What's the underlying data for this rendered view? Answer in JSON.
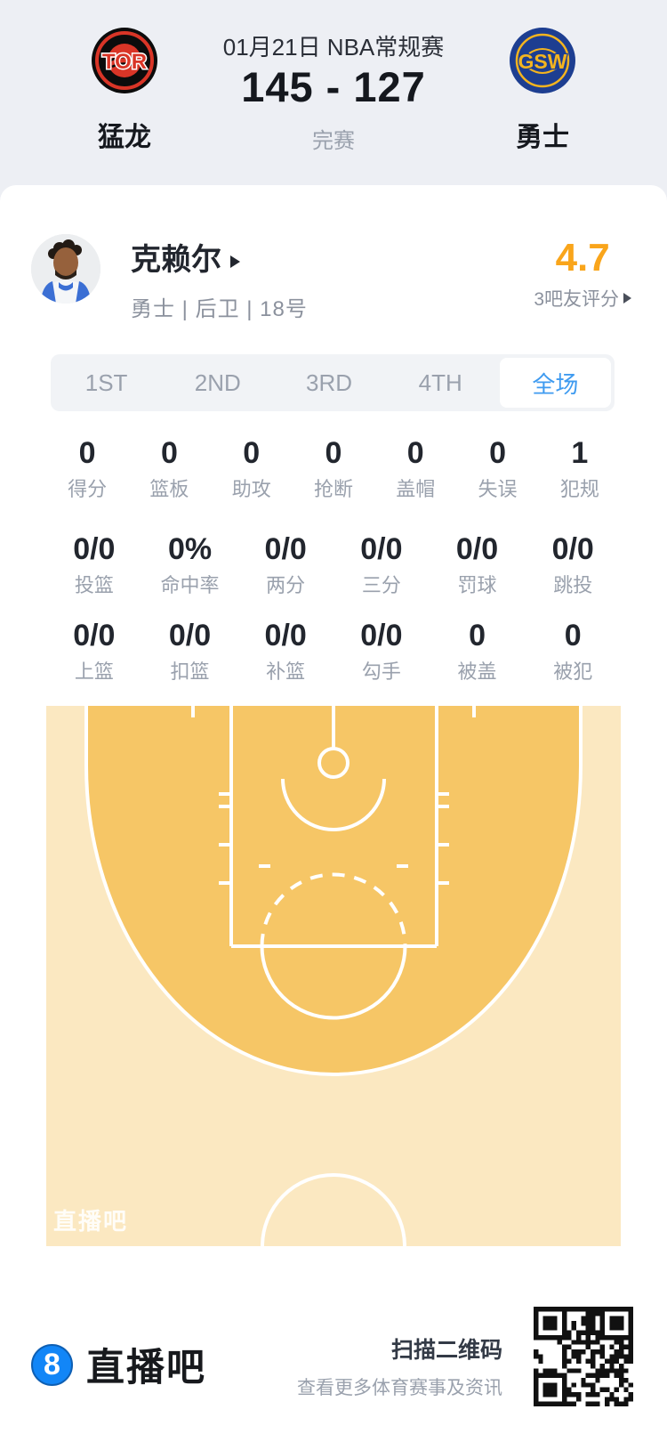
{
  "header": {
    "date_title": "01月21日 NBA常规赛",
    "score": "145 - 127",
    "status": "完赛",
    "home_team": {
      "abbr": "TOR",
      "name": "猛龙"
    },
    "away_team": {
      "abbr": "GSW",
      "name": "勇士"
    }
  },
  "player": {
    "name": "克赖尔",
    "info": "勇士 | 后卫 | 18号",
    "rating": "4.7",
    "rating_label": "3吧友评分"
  },
  "tabs": [
    {
      "label": "1ST",
      "active": false
    },
    {
      "label": "2ND",
      "active": false
    },
    {
      "label": "3RD",
      "active": false
    },
    {
      "label": "4TH",
      "active": false
    },
    {
      "label": "全场",
      "active": true
    }
  ],
  "stats": {
    "row1": [
      {
        "value": "0",
        "label": "得分"
      },
      {
        "value": "0",
        "label": "篮板"
      },
      {
        "value": "0",
        "label": "助攻"
      },
      {
        "value": "0",
        "label": "抢断"
      },
      {
        "value": "0",
        "label": "盖帽"
      },
      {
        "value": "0",
        "label": "失误"
      },
      {
        "value": "1",
        "label": "犯规"
      }
    ],
    "row2": [
      {
        "value": "0/0",
        "label": "投篮"
      },
      {
        "value": "0%",
        "label": "命中率"
      },
      {
        "value": "0/0",
        "label": "两分"
      },
      {
        "value": "0/0",
        "label": "三分"
      },
      {
        "value": "0/0",
        "label": "罚球"
      },
      {
        "value": "0/0",
        "label": "跳投"
      }
    ],
    "row3": [
      {
        "value": "0/0",
        "label": "上篮"
      },
      {
        "value": "0/0",
        "label": "扣篮"
      },
      {
        "value": "0/0",
        "label": "补篮"
      },
      {
        "value": "0/0",
        "label": "勾手"
      },
      {
        "value": "0",
        "label": "被盖"
      },
      {
        "value": "0",
        "label": "被犯"
      }
    ]
  },
  "court": {
    "watermark": "直播吧"
  },
  "footer": {
    "brand_icon": "8",
    "brand": "直播吧",
    "qr_title": "扫描二维码",
    "qr_subtitle": "查看更多体育赛事及资讯"
  },
  "colors": {
    "accent_blue": "#3f9bf0",
    "rating_orange": "#f9a51b",
    "court_inner": "#f6c666",
    "court_outer": "#fbe8c1",
    "tor_red": "#d93527",
    "gsw_navy": "#1d3e91",
    "gsw_gold": "#f4b41f",
    "brand_blue": "#1286f7"
  }
}
